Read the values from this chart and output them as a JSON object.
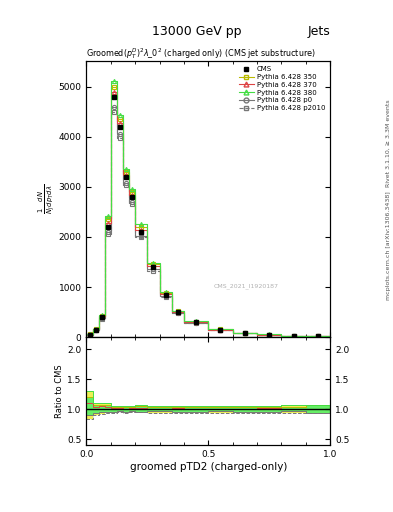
{
  "title_top": "13000 GeV pp",
  "title_right": "Jets",
  "plot_title": "Groomed$(p_T^D)^2\\lambda\\_0^2$ (charged only) (CMS jet substructure)",
  "xlabel": "groomed pTD2 (charged-only)",
  "ylabel_lines": [
    "mathrm d^{2}N",
    "mathrm d p_T  mathrm d lambda",
    "1",
    "mathrm N_J  mathrm d p_T"
  ],
  "ratio_ylabel": "Ratio to CMS",
  "right_label": "Rivet 3.1.10, ≥ 3.3M events",
  "right_label2": "mcplots.cern.ch [arXiv:1306.3438]",
  "cms_watermark": "CMS_2021_I1920187",
  "x_bins": [
    0.0,
    0.025,
    0.05,
    0.075,
    0.1,
    0.125,
    0.15,
    0.175,
    0.2,
    0.25,
    0.3,
    0.35,
    0.4,
    0.5,
    0.6,
    0.7,
    0.8,
    0.9,
    1.0
  ],
  "cms_y": [
    50,
    150,
    400,
    2200,
    4800,
    4200,
    3200,
    2800,
    2100,
    1400,
    850,
    500,
    300,
    150,
    80,
    50,
    30,
    15
  ],
  "py350_y": [
    60,
    160,
    430,
    2350,
    5000,
    4350,
    3300,
    2900,
    2200,
    1450,
    880,
    520,
    310,
    155,
    83,
    52,
    31,
    16
  ],
  "py370_y": [
    55,
    155,
    420,
    2280,
    4900,
    4270,
    3240,
    2840,
    2140,
    1415,
    860,
    508,
    303,
    152,
    81,
    51,
    30,
    15
  ],
  "py380_y": [
    65,
    165,
    440,
    2420,
    5100,
    4430,
    3360,
    2960,
    2260,
    1480,
    900,
    530,
    318,
    158,
    84,
    53,
    32,
    16
  ],
  "pyp0_y": [
    45,
    140,
    380,
    2100,
    4600,
    4050,
    3080,
    2700,
    2020,
    1350,
    820,
    480,
    288,
    145,
    77,
    48,
    29,
    14
  ],
  "pyp2010_y": [
    42,
    135,
    370,
    2050,
    4500,
    3980,
    3030,
    2660,
    1990,
    1325,
    805,
    472,
    282,
    142,
    75,
    47,
    28,
    14
  ],
  "color_350": "#bbbb00",
  "color_370": "#dd4444",
  "color_380": "#44dd44",
  "color_p0": "#777777",
  "color_p2010": "#777777",
  "ylim_main": [
    0,
    5500
  ],
  "ylim_ratio": [
    0.4,
    2.2
  ],
  "ytick_step": 1000,
  "yticks_ratio": [
    0.5,
    1.0,
    1.5,
    2.0
  ],
  "background_color": "#ffffff"
}
